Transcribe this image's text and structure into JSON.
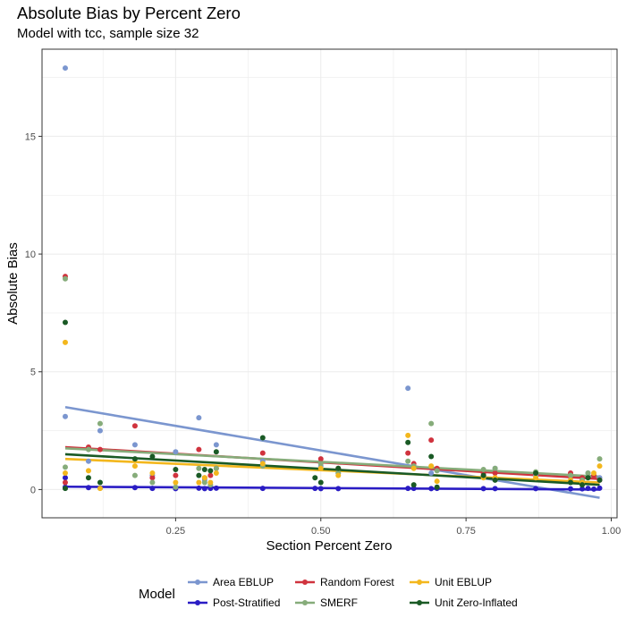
{
  "chart_data": {
    "type": "scatter",
    "title": "Absolute Bias by Percent Zero",
    "subtitle": "Model with tcc, sample size 32",
    "xlabel": "Section Percent Zero",
    "ylabel": "Absolute Bias",
    "xlim": [
      0.02,
      1.01
    ],
    "ylim": [
      -1.2,
      18.7
    ],
    "xticks": [
      "0.25",
      "0.50",
      "0.75",
      "1.00"
    ],
    "xtick_values": [
      0.25,
      0.5,
      0.75,
      1.0
    ],
    "yticks": [
      "0",
      "5",
      "10",
      "15"
    ],
    "ytick_values": [
      0,
      5,
      10,
      15
    ],
    "grid": true,
    "legend_title": "Model",
    "legend_position": "bottom",
    "series": [
      {
        "name": "Area EBLUP",
        "color": "#7b96cf",
        "points": [
          [
            0.06,
            17.9
          ],
          [
            0.06,
            3.1
          ],
          [
            0.1,
            1.2
          ],
          [
            0.12,
            2.5
          ],
          [
            0.18,
            1.9
          ],
          [
            0.21,
            0.6
          ],
          [
            0.25,
            1.6
          ],
          [
            0.29,
            3.05
          ],
          [
            0.3,
            0.4
          ],
          [
            0.32,
            1.9
          ],
          [
            0.4,
            1.2
          ],
          [
            0.5,
            1.0
          ],
          [
            0.53,
            0.7
          ],
          [
            0.65,
            4.3
          ],
          [
            0.66,
            1.0
          ],
          [
            0.69,
            0.7
          ],
          [
            0.78,
            0.6
          ],
          [
            0.8,
            0.9
          ],
          [
            0.87,
            0.6
          ],
          [
            0.93,
            0.6
          ],
          [
            0.96,
            0.7
          ],
          [
            0.98,
            0.5
          ]
        ],
        "trend": [
          [
            0.06,
            3.5
          ],
          [
            0.98,
            -0.35
          ]
        ]
      },
      {
        "name": "Post-Stratified",
        "color": "#2a1cc4",
        "points": [
          [
            0.06,
            0.5
          ],
          [
            0.06,
            0.1
          ],
          [
            0.1,
            0.08
          ],
          [
            0.12,
            0.06
          ],
          [
            0.18,
            0.08
          ],
          [
            0.21,
            0.05
          ],
          [
            0.25,
            0.04
          ],
          [
            0.29,
            0.06
          ],
          [
            0.3,
            0.04
          ],
          [
            0.31,
            0.05
          ],
          [
            0.32,
            0.06
          ],
          [
            0.4,
            0.05
          ],
          [
            0.49,
            0.05
          ],
          [
            0.5,
            0.04
          ],
          [
            0.53,
            0.04
          ],
          [
            0.65,
            0.05
          ],
          [
            0.66,
            0.05
          ],
          [
            0.69,
            0.04
          ],
          [
            0.7,
            0.05
          ],
          [
            0.78,
            0.04
          ],
          [
            0.8,
            0.04
          ],
          [
            0.87,
            0.04
          ],
          [
            0.93,
            0.03
          ],
          [
            0.95,
            0.03
          ],
          [
            0.96,
            0.05
          ],
          [
            0.97,
            0.02
          ],
          [
            0.98,
            0.06
          ]
        ],
        "trend": [
          [
            0.06,
            0.12
          ],
          [
            0.98,
            0.0
          ]
        ]
      },
      {
        "name": "Random Forest",
        "color": "#d0333e",
        "points": [
          [
            0.06,
            9.05
          ],
          [
            0.06,
            0.3
          ],
          [
            0.1,
            1.8
          ],
          [
            0.12,
            1.7
          ],
          [
            0.18,
            2.7
          ],
          [
            0.21,
            0.5
          ],
          [
            0.25,
            0.6
          ],
          [
            0.29,
            1.7
          ],
          [
            0.3,
            0.5
          ],
          [
            0.31,
            0.6
          ],
          [
            0.32,
            0.9
          ],
          [
            0.4,
            1.55
          ],
          [
            0.5,
            1.3
          ],
          [
            0.53,
            0.9
          ],
          [
            0.65,
            1.55
          ],
          [
            0.66,
            1.1
          ],
          [
            0.69,
            2.1
          ],
          [
            0.7,
            0.9
          ],
          [
            0.78,
            0.7
          ],
          [
            0.8,
            0.7
          ],
          [
            0.87,
            0.7
          ],
          [
            0.93,
            0.7
          ],
          [
            0.95,
            0.5
          ],
          [
            0.97,
            0.6
          ],
          [
            0.98,
            0.4
          ]
        ],
        "trend": [
          [
            0.06,
            1.8
          ],
          [
            0.98,
            0.45
          ]
        ]
      },
      {
        "name": "SMERF",
        "color": "#86ac7a",
        "points": [
          [
            0.06,
            8.95
          ],
          [
            0.06,
            0.95
          ],
          [
            0.1,
            1.7
          ],
          [
            0.12,
            2.8
          ],
          [
            0.18,
            0.6
          ],
          [
            0.21,
            0.3
          ],
          [
            0.25,
            0.1
          ],
          [
            0.29,
            0.9
          ],
          [
            0.3,
            0.3
          ],
          [
            0.31,
            0.2
          ],
          [
            0.32,
            0.9
          ],
          [
            0.4,
            1.0
          ],
          [
            0.5,
            1.1
          ],
          [
            0.53,
            0.7
          ],
          [
            0.65,
            1.2
          ],
          [
            0.66,
            1.0
          ],
          [
            0.69,
            2.8
          ],
          [
            0.7,
            0.8
          ],
          [
            0.78,
            0.85
          ],
          [
            0.8,
            0.9
          ],
          [
            0.87,
            0.75
          ],
          [
            0.93,
            0.6
          ],
          [
            0.95,
            0.4
          ],
          [
            0.96,
            0.7
          ],
          [
            0.98,
            1.3
          ]
        ],
        "trend": [
          [
            0.06,
            1.75
          ],
          [
            0.98,
            0.55
          ]
        ]
      },
      {
        "name": "Unit EBLUP",
        "color": "#f3b71d",
        "points": [
          [
            0.06,
            6.25
          ],
          [
            0.06,
            0.7
          ],
          [
            0.1,
            0.8
          ],
          [
            0.12,
            0.05
          ],
          [
            0.18,
            1.0
          ],
          [
            0.21,
            0.7
          ],
          [
            0.25,
            0.3
          ],
          [
            0.29,
            0.3
          ],
          [
            0.3,
            0.5
          ],
          [
            0.31,
            0.3
          ],
          [
            0.32,
            0.7
          ],
          [
            0.4,
            1.1
          ],
          [
            0.5,
            0.9
          ],
          [
            0.53,
            0.6
          ],
          [
            0.65,
            2.3
          ],
          [
            0.66,
            0.9
          ],
          [
            0.69,
            1.0
          ],
          [
            0.7,
            0.35
          ],
          [
            0.78,
            0.5
          ],
          [
            0.8,
            0.5
          ],
          [
            0.87,
            0.5
          ],
          [
            0.93,
            0.4
          ],
          [
            0.95,
            0.3
          ],
          [
            0.97,
            0.7
          ],
          [
            0.98,
            1.0
          ]
        ],
        "trend": [
          [
            0.06,
            1.3
          ],
          [
            0.98,
            0.3
          ]
        ]
      },
      {
        "name": "Unit Zero-Inflated",
        "color": "#1a5a25",
        "points": [
          [
            0.06,
            7.1
          ],
          [
            0.06,
            0.05
          ],
          [
            0.1,
            0.5
          ],
          [
            0.12,
            0.3
          ],
          [
            0.18,
            1.3
          ],
          [
            0.21,
            1.4
          ],
          [
            0.25,
            0.85
          ],
          [
            0.29,
            0.6
          ],
          [
            0.3,
            0.85
          ],
          [
            0.31,
            0.8
          ],
          [
            0.32,
            1.6
          ],
          [
            0.4,
            2.2
          ],
          [
            0.49,
            0.5
          ],
          [
            0.5,
            0.3
          ],
          [
            0.53,
            0.9
          ],
          [
            0.65,
            2.0
          ],
          [
            0.66,
            0.2
          ],
          [
            0.69,
            1.4
          ],
          [
            0.7,
            0.1
          ],
          [
            0.78,
            0.6
          ],
          [
            0.8,
            0.4
          ],
          [
            0.87,
            0.7
          ],
          [
            0.93,
            0.3
          ],
          [
            0.95,
            0.2
          ],
          [
            0.96,
            0.5
          ],
          [
            0.98,
            0.4
          ]
        ],
        "trend": [
          [
            0.06,
            1.5
          ],
          [
            0.98,
            0.2
          ]
        ]
      }
    ],
    "legend_rows": [
      [
        "Area EBLUP",
        "Random Forest",
        "Unit EBLUP"
      ],
      [
        "Post-Stratified",
        "SMERF",
        "Unit Zero-Inflated"
      ]
    ]
  }
}
